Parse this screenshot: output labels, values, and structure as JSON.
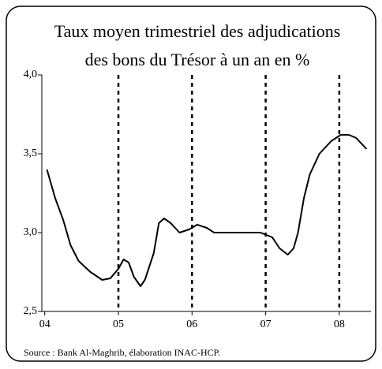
{
  "chart_data": {
    "type": "line",
    "title": [
      "Taux moyen trimestriel des adjudications",
      "des bons du Trésor à un an en %"
    ],
    "source": "Source : Bank Al-Maghrib, élaboration INAC-HCP.",
    "x": [
      2004.03,
      2004.14,
      2004.25,
      2004.35,
      2004.46,
      2004.62,
      2004.78,
      2004.89,
      2005.0,
      2005.07,
      2005.14,
      2005.21,
      2005.3,
      2005.36,
      2005.48,
      2005.55,
      2005.62,
      2005.71,
      2005.83,
      2005.96,
      2006.07,
      2006.2,
      2006.3,
      2006.6,
      2006.93,
      2007.09,
      2007.19,
      2007.3,
      2007.38,
      2007.44,
      2007.52,
      2007.6,
      2007.73,
      2007.89,
      2008.02,
      2008.13,
      2008.23,
      2008.37
    ],
    "values": [
      3.4,
      3.22,
      3.08,
      2.92,
      2.82,
      2.75,
      2.7,
      2.71,
      2.77,
      2.83,
      2.81,
      2.72,
      2.66,
      2.7,
      2.87,
      3.06,
      3.09,
      3.06,
      3.0,
      3.02,
      3.05,
      3.03,
      3.0,
      3.0,
      3.0,
      2.97,
      2.9,
      2.86,
      2.9,
      3.0,
      3.22,
      3.37,
      3.5,
      3.58,
      3.62,
      3.62,
      3.6,
      3.53
    ],
    "color": "#000000",
    "xlim": [
      2003.96,
      2008.43
    ],
    "xticks": [
      {
        "value": 2004,
        "label": "04"
      },
      {
        "value": 2005,
        "label": "05"
      },
      {
        "value": 2006,
        "label": "06"
      },
      {
        "value": 2007,
        "label": "07"
      },
      {
        "value": 2008,
        "label": "08"
      }
    ],
    "ylim": [
      2.5,
      4.0
    ],
    "yticks": [
      {
        "value": 2.5,
        "label": "2,5"
      },
      {
        "value": 3.0,
        "label": "3,0"
      },
      {
        "value": 3.5,
        "label": "3,5"
      },
      {
        "value": 4.0,
        "label": "4,0"
      }
    ],
    "dashed_vlines": [
      2005,
      2006,
      2007,
      2008
    ]
  }
}
